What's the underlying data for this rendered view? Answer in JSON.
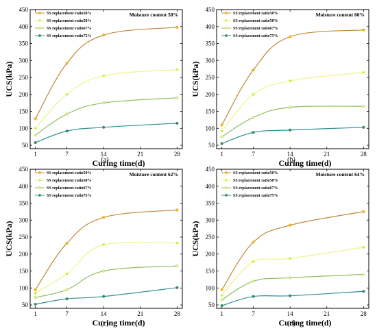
{
  "panels_common": {
    "ylabel": "UCS(kPa)",
    "xlabel": "Curing time(d)",
    "x_ticks": [
      "1",
      "7",
      "14",
      "21",
      "28"
    ],
    "y_ticks": [
      "50",
      "100",
      "150",
      "200",
      "250",
      "300",
      "350",
      "400",
      "450"
    ]
  },
  "series_style": [
    {
      "name": "SS replacement ratio50%",
      "color": "#c0873a",
      "marker_color": "#ffc107"
    },
    {
      "name": "SS replacement ratio58%",
      "color": "#f1f28a",
      "marker_color": "#c6f23a"
    },
    {
      "name": "SS replacement ratio67%",
      "color": "#8fbf5b",
      "marker_color": "#f2f08a"
    },
    {
      "name": "SS replacement ratio75%",
      "color": "#2f8f93",
      "marker_color": "#3f8a4a"
    }
  ],
  "chart_data": [
    {
      "type": "line",
      "caption": "(a)",
      "annotation": "Moisture content 58%",
      "xlabel": "Curing time(d)",
      "ylabel": "UCS(kPa)",
      "xlim": [
        0,
        29
      ],
      "ylim": [
        40,
        450
      ],
      "x": [
        1,
        7,
        14,
        28
      ],
      "series": [
        {
          "name": "SS replacement ratio50%",
          "values": [
            128,
            292,
            375,
            398
          ]
        },
        {
          "name": "SS replacement ratio58%",
          "values": [
            100,
            200,
            255,
            273
          ]
        },
        {
          "name": "SS replacement ratio67%",
          "values": [
            80,
            142,
            175,
            190
          ]
        },
        {
          "name": "SS replacement ratio75%",
          "values": [
            58,
            92,
            103,
            115
          ]
        }
      ]
    },
    {
      "type": "line",
      "caption": "(b)",
      "annotation": "Moisture content 60%",
      "xlabel": "Curing time(d)",
      "ylabel": "UCS(kPa)",
      "xlim": [
        0,
        29
      ],
      "ylim": [
        40,
        450
      ],
      "x": [
        1,
        7,
        14,
        28
      ],
      "series": [
        {
          "name": "SS replacement ratio50%",
          "values": [
            110,
            272,
            370,
            390
          ]
        },
        {
          "name": "SS replacement ratio58%",
          "values": [
            92,
            200,
            240,
            265
          ]
        },
        {
          "name": "SS replacement ratio67%",
          "values": [
            75,
            132,
            162,
            165
          ]
        },
        {
          "name": "SS replacement ratio75%",
          "values": [
            55,
            88,
            95,
            103
          ]
        }
      ]
    },
    {
      "type": "line",
      "caption": "(c)",
      "annotation": "Moisture content 62%",
      "xlabel": "Curing time(d)",
      "ylabel": "UCS(kPa)",
      "xlim": [
        0,
        29
      ],
      "ylim": [
        40,
        450
      ],
      "x": [
        1,
        7,
        14,
        28
      ],
      "series": [
        {
          "name": "SS replacement ratio50%",
          "values": [
            95,
            232,
            308,
            330
          ]
        },
        {
          "name": "SS replacement ratio58%",
          "values": [
            85,
            142,
            228,
            233
          ]
        },
        {
          "name": "SS replacement ratio67%",
          "values": [
            72,
            95,
            150,
            165
          ]
        },
        {
          "name": "SS replacement ratio75%",
          "values": [
            52,
            68,
            75,
            101
          ]
        }
      ]
    },
    {
      "type": "line",
      "caption": "(d)",
      "annotation": "Moisture content 64%",
      "xlabel": "Curing time(d)",
      "ylabel": "UCS(kPa)",
      "xlim": [
        0,
        29
      ],
      "ylim": [
        40,
        450
      ],
      "x": [
        1,
        7,
        14,
        28
      ],
      "series": [
        {
          "name": "SS replacement ratio50%",
          "values": [
            95,
            235,
            285,
            325
          ]
        },
        {
          "name": "SS replacement ratio58%",
          "values": [
            78,
            178,
            187,
            220
          ]
        },
        {
          "name": "SS replacement ratio67%",
          "values": [
            65,
            120,
            130,
            140
          ]
        },
        {
          "name": "SS replacement ratio75%",
          "values": [
            48,
            75,
            77,
            90
          ]
        }
      ]
    }
  ]
}
